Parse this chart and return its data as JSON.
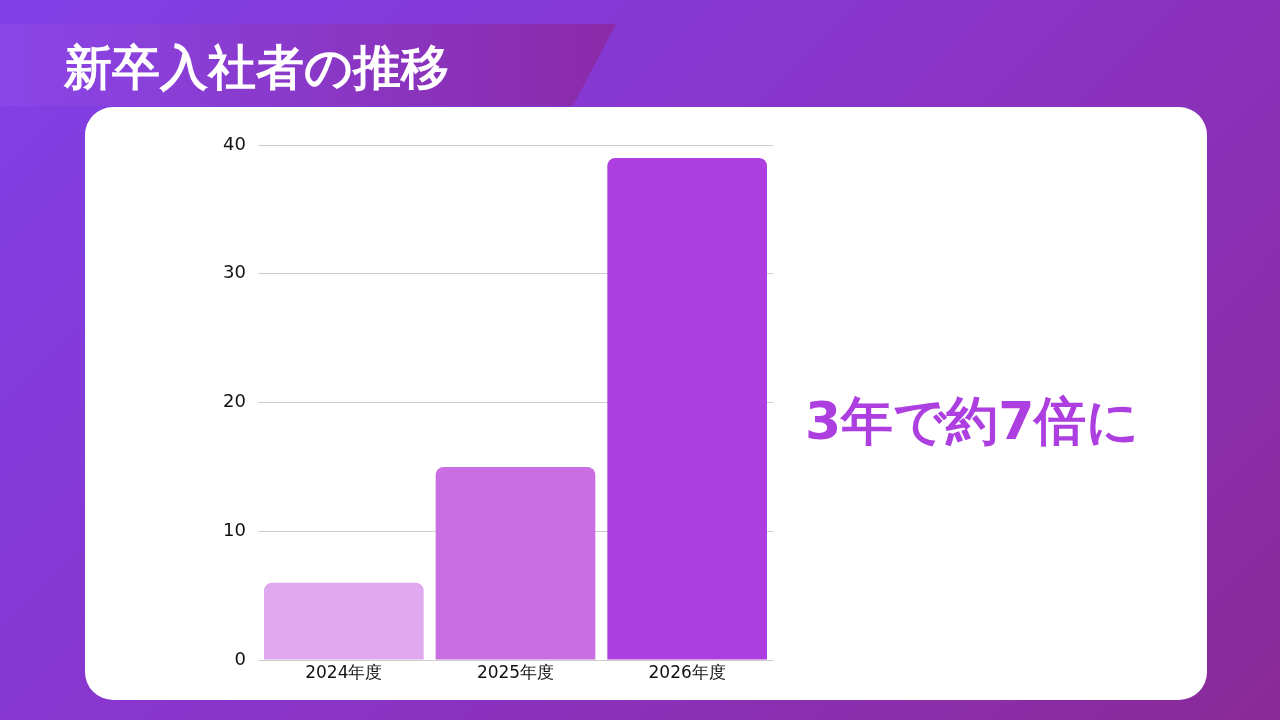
{
  "chart_data": {
    "type": "bar",
    "title": "新卒入社者の推移",
    "categories": [
      "2024年度",
      "2025年度",
      "2026年度"
    ],
    "values": [
      6,
      15,
      39
    ],
    "colors": [
      "#e0a8ee",
      "#c96fe3",
      "#ad3ee0"
    ],
    "ylim": [
      0,
      40
    ],
    "yticks": [
      0,
      10,
      20,
      30,
      40
    ],
    "grid": "y",
    "legend": false,
    "annotations": [
      "3年で約7倍に"
    ]
  }
}
